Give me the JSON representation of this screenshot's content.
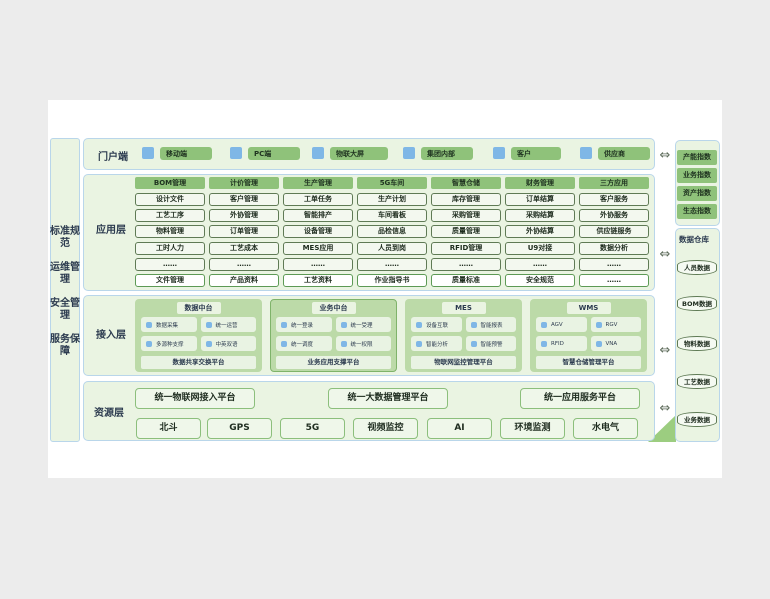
{
  "side_labels": [
    "标准规范",
    "运维管理",
    "安全管理",
    "服务保障"
  ],
  "portal": {
    "label": "门户端",
    "items": [
      {
        "icon": "tablet-icon",
        "label": "移动端"
      },
      {
        "icon": "monitor-icon",
        "label": "PC端"
      },
      {
        "icon": "screen-icon",
        "label": "物联大屏"
      },
      {
        "icon": "building-icon",
        "label": "集团内部"
      },
      {
        "icon": "user-icon",
        "label": "客户"
      },
      {
        "icon": "user-icon",
        "label": "供应商"
      }
    ]
  },
  "app": {
    "label": "应用层",
    "columns": [
      {
        "header": "BOM管理",
        "items": [
          "设计文件",
          "工艺工序",
          "物料管理",
          "工时人力",
          "……",
          "文件管理"
        ]
      },
      {
        "header": "计价管理",
        "items": [
          "客户管理",
          "外协管理",
          "订单管理",
          "工艺成本",
          "……",
          "产品资料"
        ]
      },
      {
        "header": "生产管理",
        "items": [
          "工单任务",
          "智能排产",
          "设备管理",
          "MES应用",
          "……",
          "工艺资料"
        ]
      },
      {
        "header": "5G车间",
        "items": [
          "生产计划",
          "车间看板",
          "品检信息",
          "人员到岗",
          "……",
          "作业指导书"
        ]
      },
      {
        "header": "智慧仓储",
        "items": [
          "库存管理",
          "采购管理",
          "质量管理",
          "RFID管理",
          "……",
          "质量标准"
        ]
      },
      {
        "header": "财务管理",
        "items": [
          "订单结算",
          "采购结算",
          "外协结算",
          "U9对接",
          "……",
          "安全规范"
        ]
      },
      {
        "header": "三方应用",
        "items": [
          "客户服务",
          "外协服务",
          "供应链服务",
          "数据分析",
          "……",
          "……"
        ]
      }
    ]
  },
  "access": {
    "label": "接入层",
    "groups": [
      {
        "title": "数据中台",
        "items": [
          "数据采集",
          "统一运营",
          "多源种支撑",
          "中英双语"
        ],
        "platform": "数据共享交换平台"
      },
      {
        "title": "业务中台",
        "items": [
          "统一登录",
          "统一受理",
          "统一调度",
          "统一权限"
        ],
        "platform": "业务应用支撑平台"
      },
      {
        "title": "MES",
        "items": [
          "设备互联",
          "智能报表",
          "智能分析",
          "智能预警"
        ],
        "platform": "物联网监控管理平台"
      },
      {
        "title": "WMS",
        "items": [
          "AGV",
          "RGV",
          "RFID",
          "VNA"
        ],
        "platform": "智慧仓储管理平台"
      }
    ]
  },
  "resource": {
    "label": "资源层",
    "platforms": [
      "统一物联网接入平台",
      "统一大数据管理平台",
      "统一应用服务平台"
    ],
    "items": [
      "北斗",
      "GPS",
      "5G",
      "视频监控",
      "AI",
      "环境监测",
      "水电气"
    ]
  },
  "indices": [
    "产能指数",
    "业务指数",
    "资产指数",
    "生态指数"
  ],
  "warehouse": {
    "title": "数据仓库",
    "items": [
      "人员数据",
      "BOM数据",
      "物料数据",
      "工艺数据",
      "业务数据"
    ]
  },
  "colors": {
    "accent_green": "#8fc27a",
    "panel_bg": "#eaf4e2",
    "border_blue": "#b9d6ea"
  }
}
